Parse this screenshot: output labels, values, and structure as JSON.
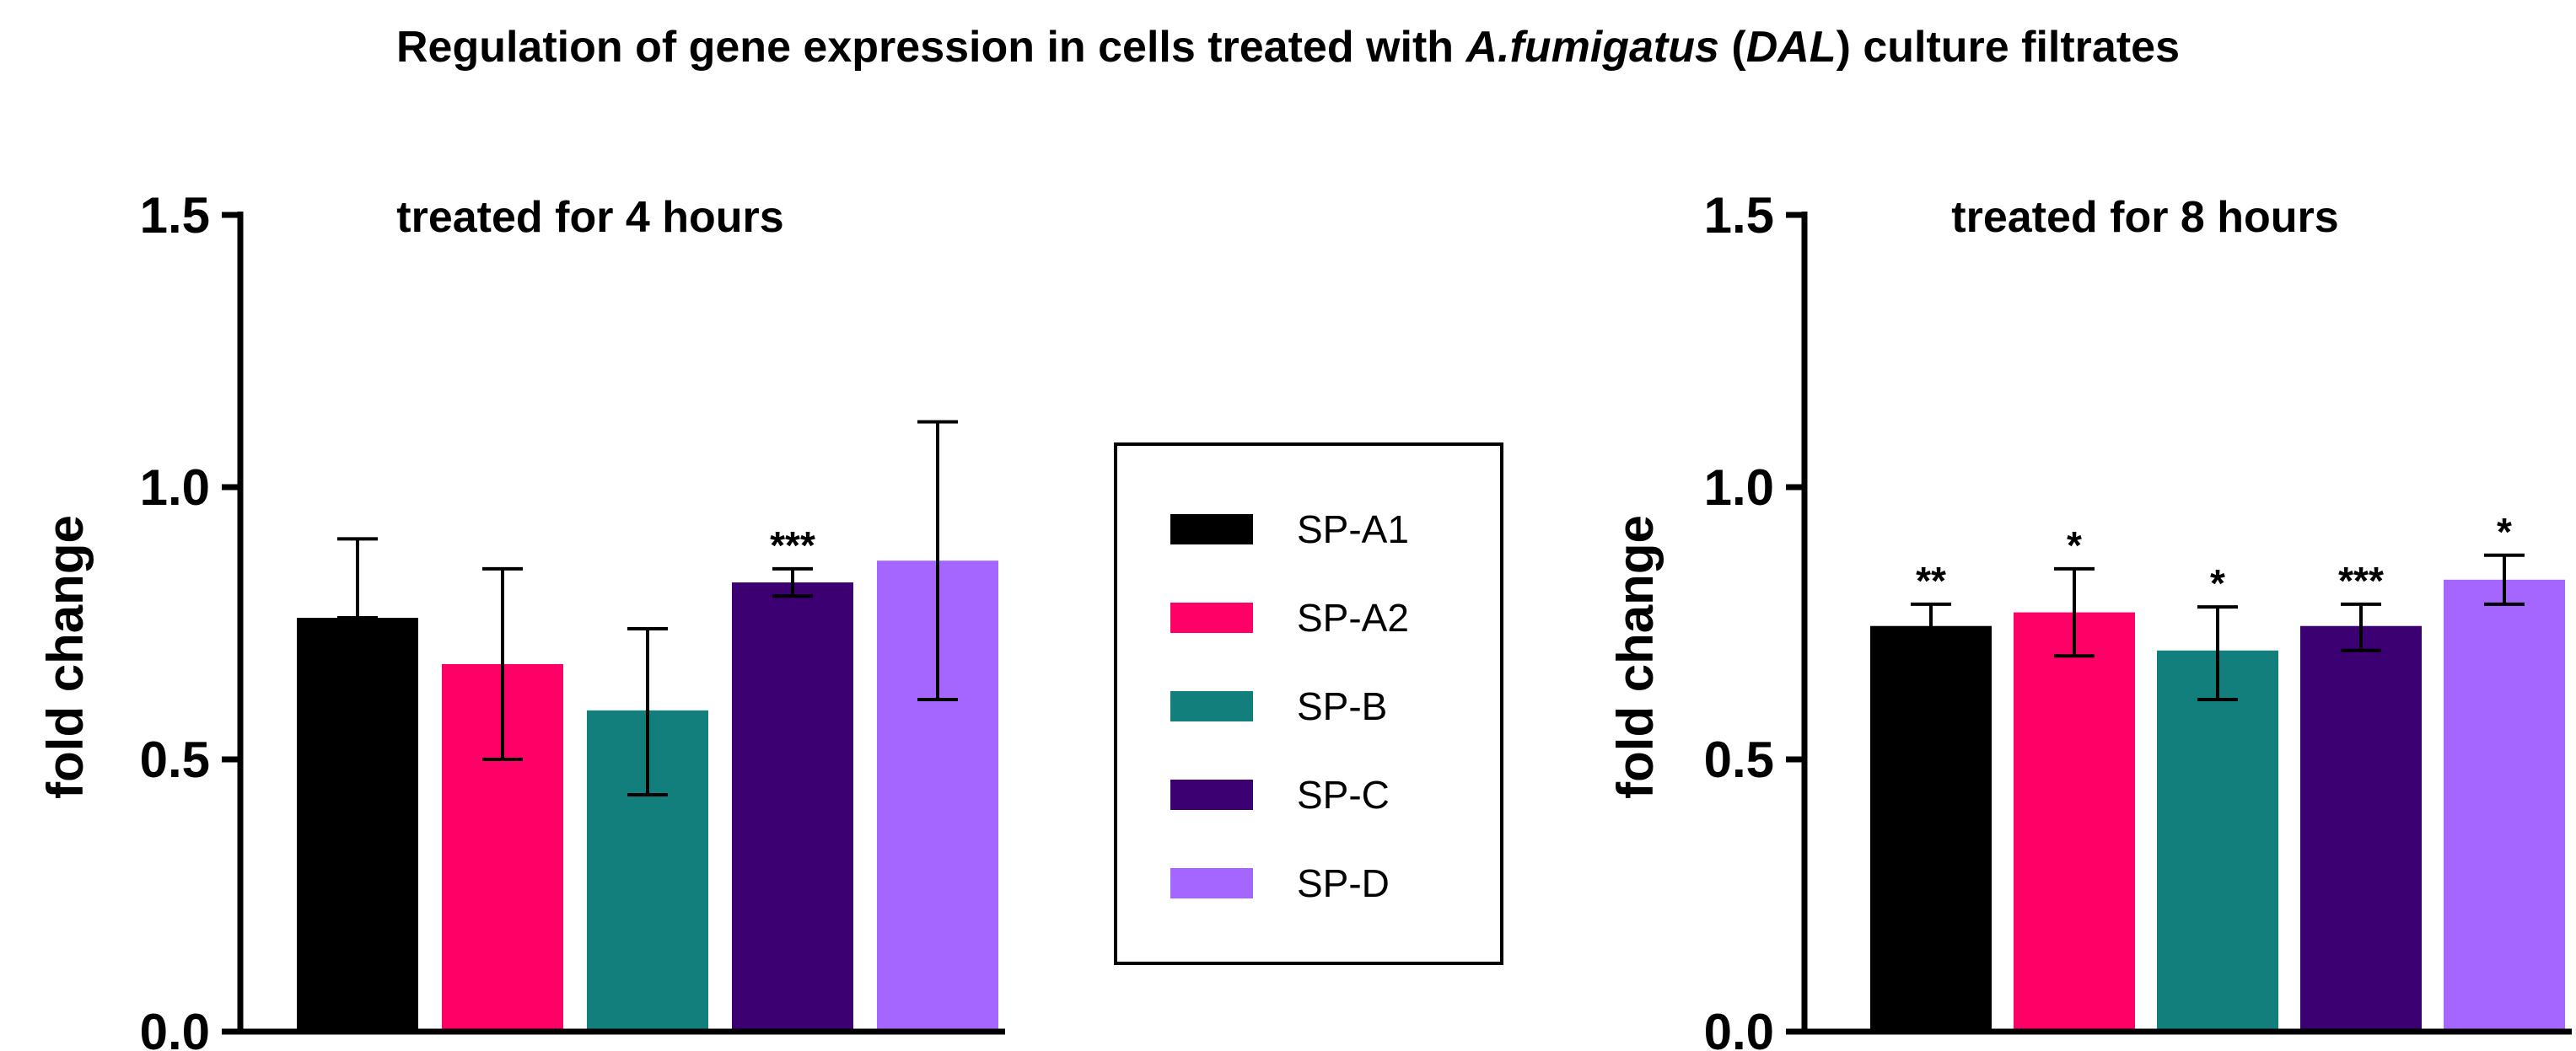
{
  "figure": {
    "title_prefix": "Regulation of gene expression in cells treated with ",
    "title_organism": "A.fumigatus",
    "title_open_paren": " (",
    "title_strain": "DAL",
    "title_suffix": ") culture filtrates"
  },
  "chart_data": [
    {
      "type": "bar",
      "title": "treated for 4 hours",
      "ylabel": "fold change",
      "xlabel": "",
      "ylim": [
        0,
        1.5
      ],
      "yticks": [
        "0.0",
        "0.5",
        "1.0",
        "1.5"
      ],
      "categories": [
        "SP-A1",
        "SP-A2",
        "SP-B",
        "SP-C",
        "SP-D"
      ],
      "values": [
        0.76,
        0.675,
        0.59,
        0.825,
        0.865
      ],
      "error_low": [
        0.76,
        0.5,
        0.435,
        0.8,
        0.61
      ],
      "error_high": [
        0.905,
        0.85,
        0.74,
        0.85,
        1.12
      ],
      "significance": [
        "",
        "",
        "",
        "***",
        ""
      ]
    },
    {
      "type": "bar",
      "title": "treated for 8 hours",
      "ylabel": "fold change",
      "xlabel": "",
      "ylim": [
        0,
        1.5
      ],
      "yticks": [
        "0.0",
        "0.5",
        "1.0",
        "1.5"
      ],
      "categories": [
        "SP-A1",
        "SP-A2",
        "SP-B",
        "SP-C",
        "SP-D"
      ],
      "values": [
        0.745,
        0.77,
        0.7,
        0.745,
        0.83
      ],
      "error_low": [
        0.7,
        0.69,
        0.61,
        0.7,
        0.785
      ],
      "error_high": [
        0.785,
        0.85,
        0.78,
        0.785,
        0.875
      ],
      "significance": [
        "**",
        "*",
        "*",
        "***",
        "*"
      ]
    }
  ],
  "legend": {
    "position": "center",
    "items": [
      {
        "label": "SP-A1",
        "color": "#000000"
      },
      {
        "label": "SP-A2",
        "color": "#ff0066"
      },
      {
        "label": "SP-B",
        "color": "#137f7c"
      },
      {
        "label": "SP-C",
        "color": "#3c0073"
      },
      {
        "label": "SP-D",
        "color": "#a566ff"
      }
    ]
  }
}
